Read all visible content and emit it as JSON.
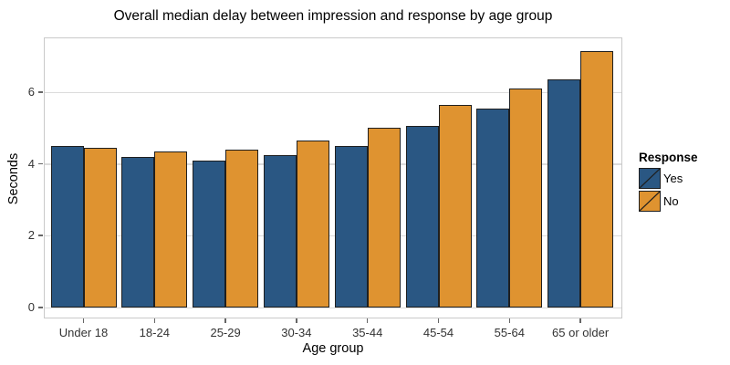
{
  "chart_data": {
    "type": "bar",
    "title": "Overall median delay between impression and response by age group",
    "xlabel": "Age group",
    "ylabel": "Seconds",
    "categories": [
      "Under 18",
      "18-24",
      "25-29",
      "30-34",
      "35-44",
      "45-54",
      "55-64",
      "65 or older"
    ],
    "series": [
      {
        "name": "Yes",
        "color": "#2A5783",
        "values": [
          4.5,
          4.2,
          4.1,
          4.25,
          4.5,
          5.05,
          5.55,
          6.35
        ]
      },
      {
        "name": "No",
        "color": "#DF9330",
        "values": [
          4.45,
          4.35,
          4.4,
          4.65,
          5.0,
          5.65,
          6.1,
          7.15
        ]
      }
    ],
    "y_ticks": [
      0,
      2,
      4,
      6
    ],
    "ylim": [
      0,
      7.5
    ],
    "grid": "horizontal-major-only",
    "bar_outline_color": "#1F1F1F",
    "legend": {
      "title": "Response",
      "position": "right",
      "items": [
        "Yes",
        "No"
      ]
    }
  }
}
